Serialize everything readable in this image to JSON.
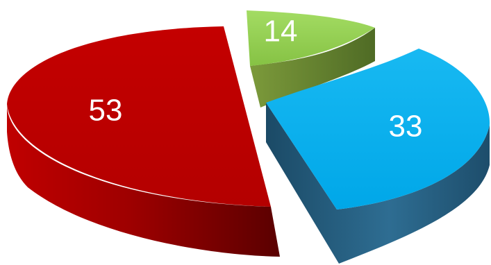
{
  "chart_data": {
    "type": "pie",
    "style": "3d-exploded",
    "title": "",
    "legend": "none",
    "slices": [
      {
        "label": "14",
        "value": 14,
        "color": "#92D050"
      },
      {
        "label": "33",
        "value": 33,
        "color": "#00B0F0"
      },
      {
        "label": "53",
        "value": 53,
        "color": "#C00000"
      }
    ]
  }
}
